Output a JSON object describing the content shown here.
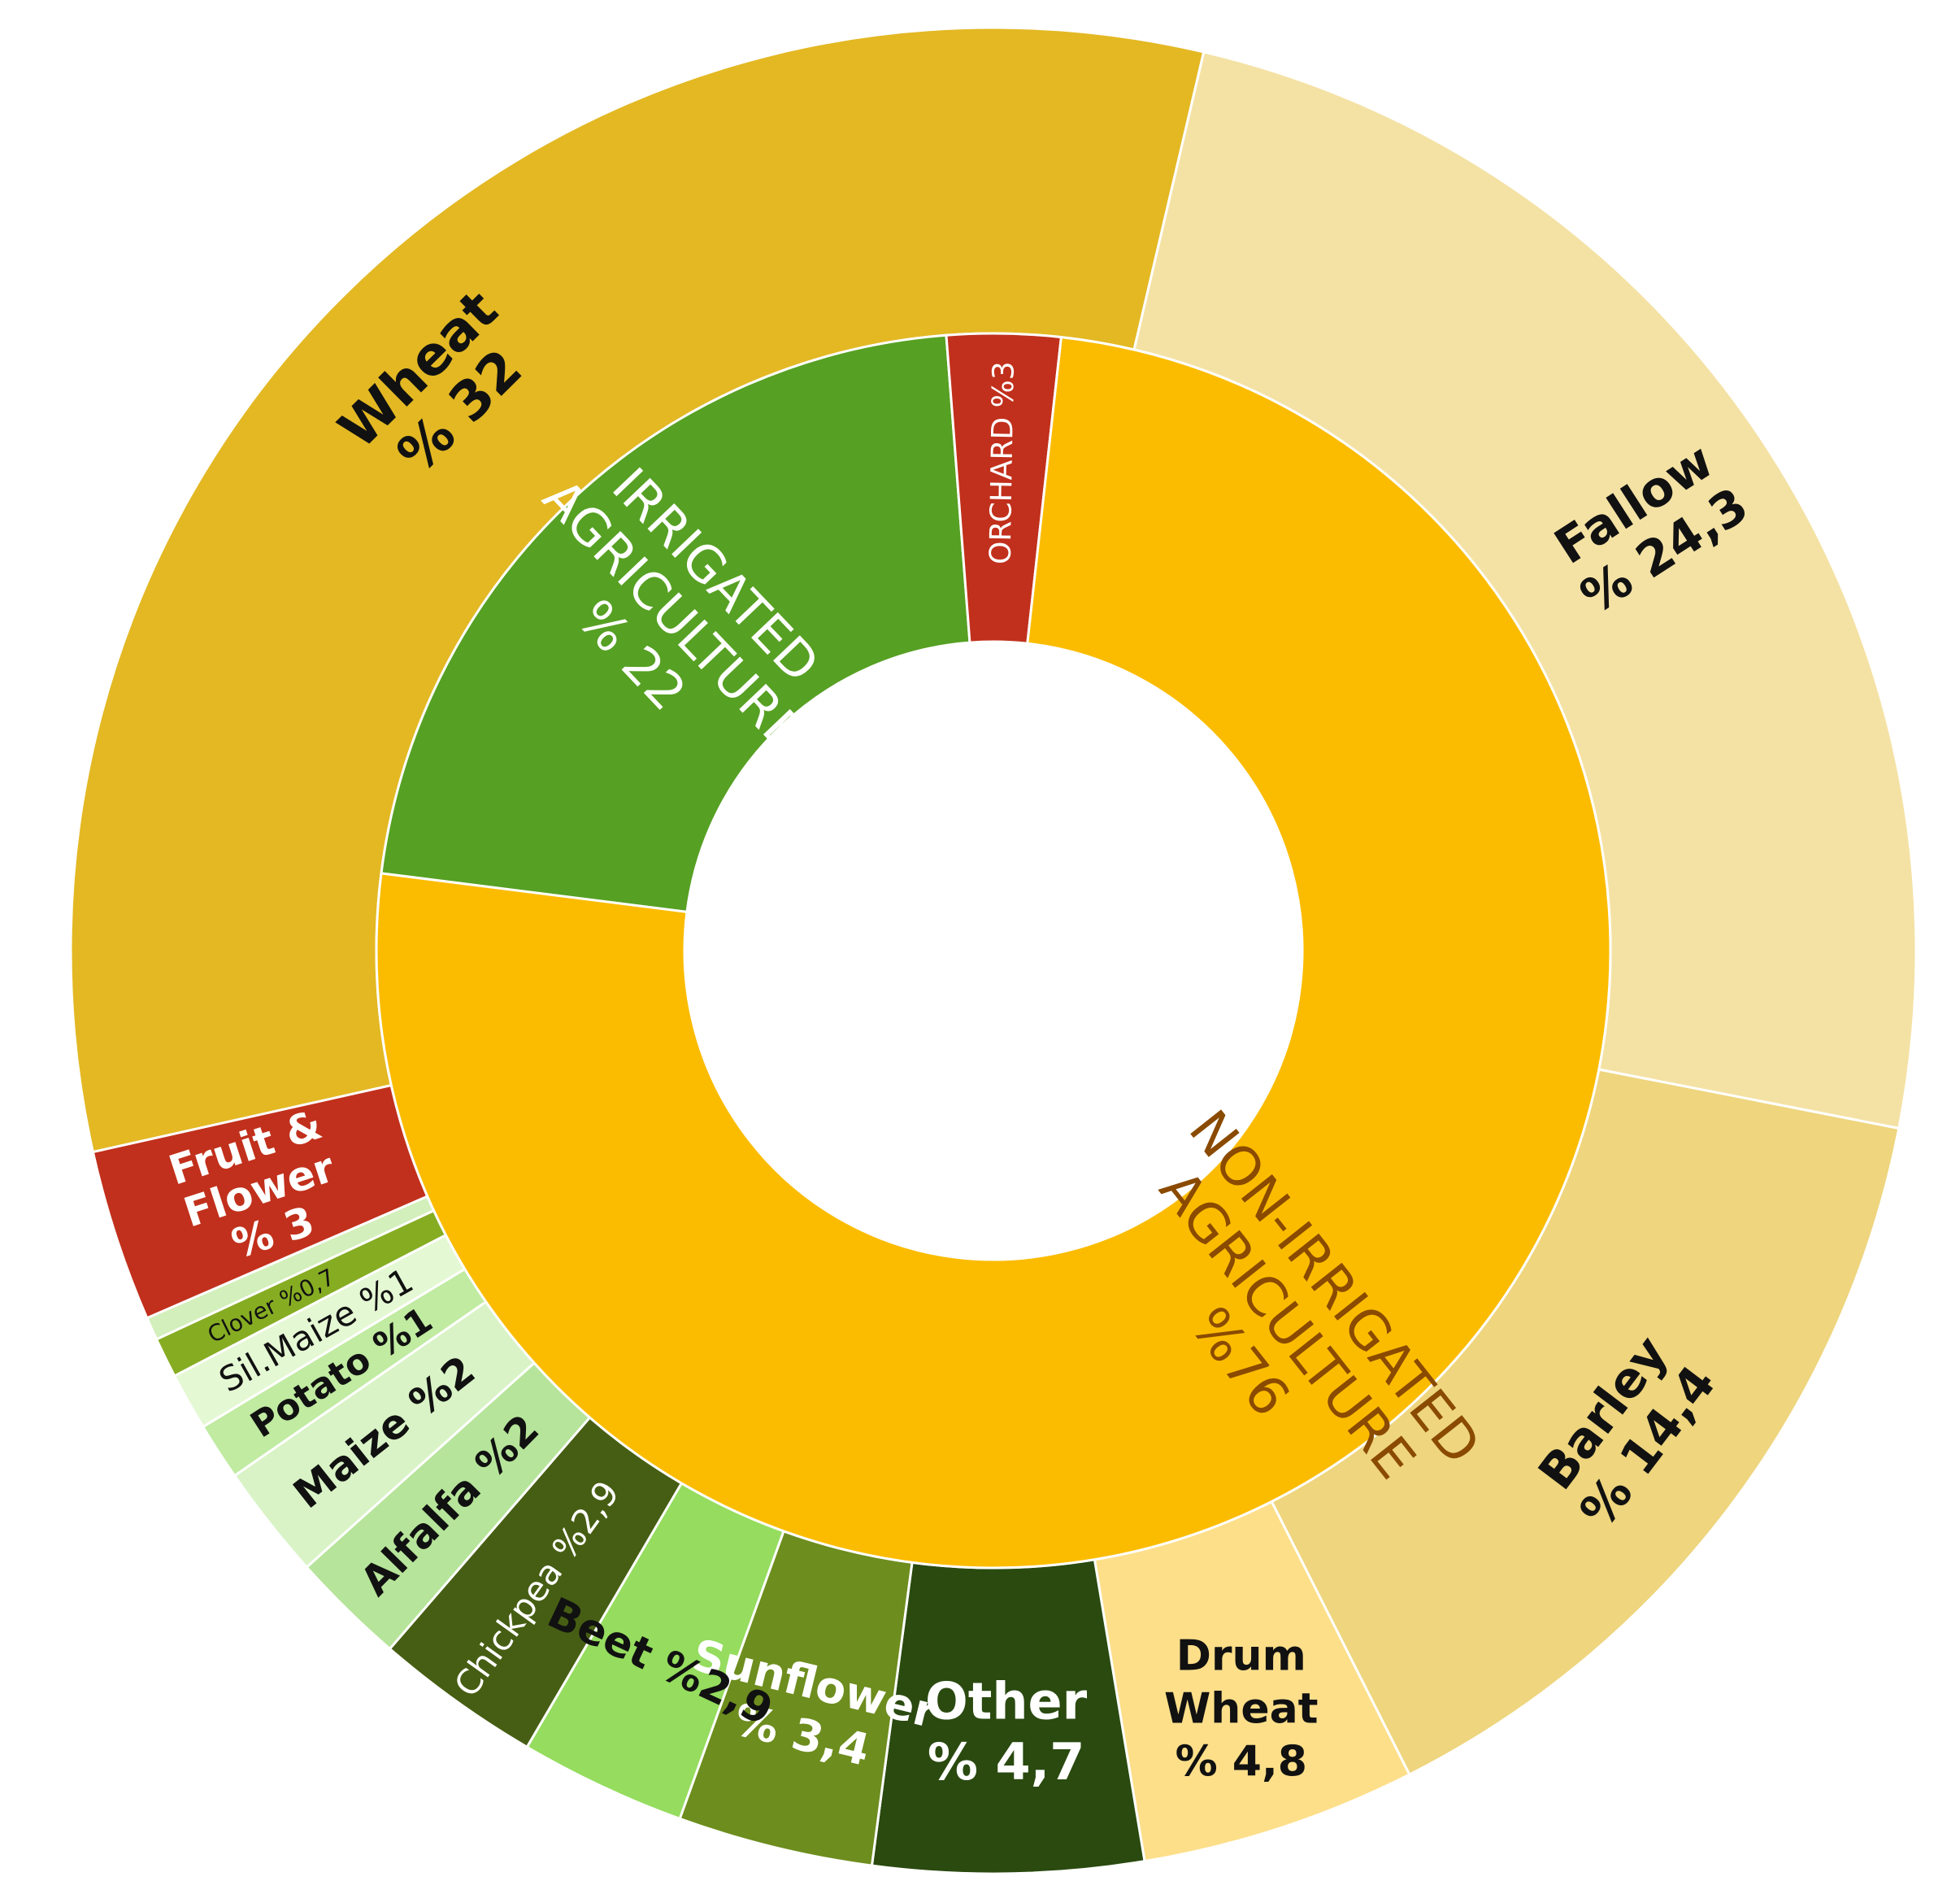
{
  "chart_data": {
    "type": "sunburst",
    "unit": "%",
    "inner_ring": [
      {
        "name": "IRRIGATED AGRICULTURE",
        "value": 22,
        "label_lines": [
          "IRRIGATED",
          "AGRICULTURE",
          "% 22"
        ],
        "color": "#56a023",
        "text_color": "#ffffff"
      },
      {
        "name": "ORCHARD",
        "value": 3,
        "label_lines": [
          "ORCHARD %3"
        ],
        "color": "#c1301c",
        "text_color": "#ffffff"
      },
      {
        "name": "NON-IRRIGATED AGRICULTURE",
        "value": 76,
        "label_lines": [
          "NON-IRRIGATED",
          "AGRICULTURE",
          "%76"
        ],
        "color": "#fbbc00",
        "text_color": "#8a4a00"
      }
    ],
    "outer_ring": [
      {
        "name": "Wheat",
        "value": 32,
        "parent": "NON-IRRIGATED AGRICULTURE",
        "label_lines": [
          "Wheat",
          "% 32"
        ],
        "color": "#e3b823",
        "text_color": "#111111"
      },
      {
        "name": "Fallow",
        "value": 24.3,
        "parent": "NON-IRRIGATED AGRICULTURE",
        "label_lines": [
          "Fallow",
          "% 24,3"
        ],
        "color": "#f4e2a5",
        "text_color": "#111111"
      },
      {
        "name": "Barley",
        "value": 14.4,
        "parent": "NON-IRRIGATED AGRICULTURE",
        "label_lines": [
          "Barley",
          "% 14,4"
        ],
        "color": "#eed57e",
        "text_color": "#111111"
      },
      {
        "name": "Drum Wheat",
        "value": 4.8,
        "parent": "NON-IRRIGATED AGRICULTURE",
        "label_lines": [
          "Drum",
          "Wheat",
          "% 4,8"
        ],
        "color": "#fddf8a",
        "text_color": "#111111"
      },
      {
        "name": "Other",
        "value": 4.7,
        "parent": "IRRIGATED AGRICULTURE",
        "label_lines": [
          "Other",
          "% 4,7"
        ],
        "color": "#2a4a10",
        "text_color": "#ffffff"
      },
      {
        "name": "Sunflower",
        "value": 3.4,
        "parent": "IRRIGATED AGRICULTURE",
        "label_lines": [
          "Sunflower",
          "% 3,4"
        ],
        "color": "#6d8d1e",
        "text_color": "#ffffff"
      },
      {
        "name": "Beet",
        "value": 2.9,
        "parent": "IRRIGATED AGRICULTURE",
        "label_lines": [
          "Beet %2,9"
        ],
        "color": "#95dc5f",
        "text_color": "#111111"
      },
      {
        "name": "Chickpea",
        "value": 2.9,
        "parent": "IRRIGATED AGRICULTURE",
        "label_lines": [
          "Chickpea %2,9"
        ],
        "color": "#465e13",
        "text_color": "#ffffff"
      },
      {
        "name": "Alfalfa",
        "value": 2,
        "parent": "IRRIGATED AGRICULTURE",
        "label_lines": [
          "Alfalfa %2"
        ],
        "color": "#b6e49a",
        "text_color": "#111111"
      },
      {
        "name": "Maize",
        "value": 2,
        "parent": "IRRIGATED AGRICULTURE",
        "label_lines": [
          "Maize %2"
        ],
        "color": "#d9f3c6",
        "text_color": "#111111"
      },
      {
        "name": "Potato",
        "value": 1,
        "parent": "IRRIGATED AGRICULTURE",
        "label_lines": [
          "Potato %1"
        ],
        "color": "#c0eba1",
        "text_color": "#111111"
      },
      {
        "name": "Sil.Maize",
        "value": 1,
        "parent": "IRRIGATED AGRICULTURE",
        "label_lines": [
          "Sil.Maize %1"
        ],
        "color": "#e5f8d4",
        "text_color": "#111111"
      },
      {
        "name": "Clover",
        "value": 0.7,
        "parent": "IRRIGATED AGRICULTURE",
        "label_lines": [
          "Clover %0,7"
        ],
        "color": "#86ad22",
        "text_color": "#111111"
      },
      {
        "name": "",
        "value": 0.4,
        "parent": "IRRIGATED AGRICULTURE",
        "label_lines": [],
        "color": "#d3efbb",
        "text_color": "#111111"
      },
      {
        "name": "Fruit & Flower",
        "value": 3,
        "parent": "ORCHARD",
        "label_lines": [
          "Fruit &",
          "Flower",
          "% 3"
        ],
        "color": "#c1301c",
        "text_color": "#ffffff"
      }
    ]
  }
}
